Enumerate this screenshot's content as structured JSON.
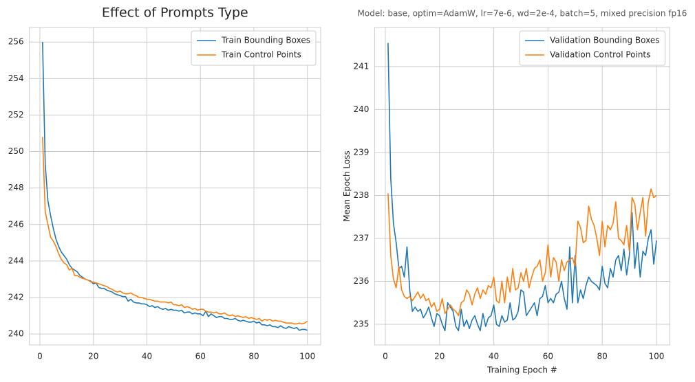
{
  "chart_data": [
    {
      "type": "line",
      "title": "Effect of Prompts Type",
      "x": [
        1,
        2,
        3,
        4,
        5,
        6,
        7,
        8,
        9,
        10,
        11,
        12,
        13,
        14,
        15,
        16,
        17,
        18,
        19,
        20,
        21,
        22,
        23,
        24,
        25,
        26,
        27,
        28,
        29,
        30,
        31,
        32,
        33,
        34,
        35,
        36,
        37,
        38,
        39,
        40,
        41,
        42,
        43,
        44,
        45,
        46,
        47,
        48,
        49,
        50,
        51,
        52,
        53,
        54,
        55,
        56,
        57,
        58,
        59,
        60,
        61,
        62,
        63,
        64,
        65,
        66,
        67,
        68,
        69,
        70,
        71,
        72,
        73,
        74,
        75,
        76,
        77,
        78,
        79,
        80,
        81,
        82,
        83,
        84,
        85,
        86,
        87,
        88,
        89,
        90,
        91,
        92,
        93,
        94,
        95,
        96,
        97,
        98,
        99,
        100
      ],
      "series": [
        {
          "name": "Train Bounding Boxes",
          "color": "#1f77b4",
          "values": [
            256.0,
            249.3,
            247.3,
            246.5,
            245.8,
            245.2,
            244.8,
            244.5,
            244.3,
            244.1,
            243.8,
            243.6,
            243.5,
            243.4,
            243.2,
            243.1,
            243.0,
            242.95,
            242.9,
            242.75,
            242.8,
            242.55,
            242.5,
            242.5,
            242.4,
            242.35,
            242.3,
            242.2,
            242.15,
            242.1,
            242.05,
            242.05,
            241.8,
            241.9,
            241.75,
            241.7,
            241.7,
            241.65,
            241.65,
            241.6,
            241.5,
            241.55,
            241.45,
            241.5,
            241.4,
            241.35,
            241.4,
            241.3,
            241.35,
            241.3,
            241.3,
            241.25,
            241.3,
            241.15,
            241.2,
            241.2,
            241.1,
            241.15,
            241.1,
            241.1,
            241.0,
            241.25,
            240.95,
            241.1,
            241.0,
            240.9,
            240.95,
            240.95,
            240.85,
            240.85,
            240.8,
            240.8,
            240.85,
            240.75,
            240.7,
            240.75,
            240.7,
            240.65,
            240.65,
            240.7,
            240.6,
            240.65,
            240.5,
            240.5,
            240.45,
            240.5,
            240.4,
            240.4,
            240.35,
            240.45,
            240.35,
            240.3,
            240.4,
            240.35,
            240.3,
            240.35,
            240.2,
            240.25,
            240.25,
            240.2
          ]
        },
        {
          "name": "Train Control Points",
          "color": "#ff7f0e",
          "values": [
            250.8,
            246.7,
            246.0,
            245.3,
            245.1,
            244.8,
            244.4,
            244.1,
            243.9,
            243.8,
            243.5,
            243.6,
            243.2,
            243.2,
            243.1,
            243.05,
            243.0,
            242.95,
            242.85,
            242.85,
            242.8,
            242.75,
            242.7,
            242.65,
            242.6,
            242.5,
            242.45,
            242.35,
            242.3,
            242.35,
            242.25,
            242.2,
            242.2,
            242.25,
            242.15,
            242.1,
            242.0,
            242.0,
            241.95,
            241.9,
            241.9,
            241.85,
            241.8,
            241.8,
            241.75,
            241.75,
            241.75,
            241.7,
            241.75,
            241.6,
            241.6,
            241.55,
            241.6,
            241.45,
            241.5,
            241.45,
            241.35,
            241.4,
            241.3,
            241.35,
            241.35,
            241.25,
            241.2,
            241.2,
            241.15,
            241.2,
            241.1,
            241.1,
            241.15,
            241.05,
            241.0,
            241.05,
            240.95,
            241.0,
            240.95,
            240.9,
            240.95,
            240.85,
            240.9,
            240.85,
            240.8,
            240.85,
            240.7,
            240.8,
            240.75,
            240.8,
            240.7,
            240.75,
            240.7,
            240.7,
            240.65,
            240.6,
            240.6,
            240.6,
            240.55,
            240.55,
            240.6,
            240.55,
            240.6,
            240.7
          ]
        }
      ],
      "xlim": [
        -3.95,
        104.95
      ],
      "xticks": [
        0,
        20,
        40,
        60,
        80,
        100
      ],
      "ylim": [
        239.4,
        256.8
      ],
      "yticks": [
        240,
        242,
        244,
        246,
        248,
        250,
        252,
        254,
        256
      ],
      "grid": true,
      "legend": "upper-right"
    },
    {
      "type": "line",
      "title": "Model: base, optim=AdamW, lr=7e-6, wd=2e-4, batch=5, mixed precision fp16",
      "x_label": "Training Epoch #",
      "y_label": "Mean Epoch Loss",
      "x": [
        1,
        2,
        3,
        4,
        5,
        6,
        7,
        8,
        9,
        10,
        11,
        12,
        13,
        14,
        15,
        16,
        17,
        18,
        19,
        20,
        21,
        22,
        23,
        24,
        25,
        26,
        27,
        28,
        29,
        30,
        31,
        32,
        33,
        34,
        35,
        36,
        37,
        38,
        39,
        40,
        41,
        42,
        43,
        44,
        45,
        46,
        47,
        48,
        49,
        50,
        51,
        52,
        53,
        54,
        55,
        56,
        57,
        58,
        59,
        60,
        61,
        62,
        63,
        64,
        65,
        66,
        67,
        68,
        69,
        70,
        71,
        72,
        73,
        74,
        75,
        76,
        77,
        78,
        79,
        80,
        81,
        82,
        83,
        84,
        85,
        86,
        87,
        88,
        89,
        90,
        91,
        92,
        93,
        94,
        95,
        96,
        97,
        98,
        99,
        100
      ],
      "series": [
        {
          "name": "Validation Bounding Boxes",
          "color": "#1f77b4",
          "values": [
            241.55,
            238.4,
            237.35,
            236.9,
            236.3,
            236.35,
            236.1,
            236.8,
            235.8,
            235.3,
            235.4,
            235.3,
            235.35,
            235.15,
            235.25,
            235.4,
            235.15,
            234.95,
            235.25,
            235.2,
            235.0,
            234.85,
            235.5,
            235.4,
            235.3,
            234.95,
            234.85,
            235.35,
            234.95,
            235.1,
            234.9,
            235.1,
            235.2,
            235.0,
            234.85,
            235.25,
            234.95,
            235.15,
            235.2,
            235.45,
            235.0,
            234.95,
            235.2,
            235.05,
            235.1,
            235.5,
            235.1,
            235.15,
            235.3,
            235.8,
            235.75,
            235.2,
            235.3,
            235.4,
            235.5,
            235.2,
            235.6,
            235.65,
            235.9,
            235.5,
            235.6,
            235.5,
            235.7,
            235.75,
            236.0,
            235.6,
            235.35,
            236.8,
            235.5,
            236.6,
            235.5,
            235.8,
            235.6,
            235.9,
            236.1,
            236.0,
            235.95,
            235.9,
            235.8,
            236.35,
            235.95,
            235.85,
            236.3,
            236.1,
            236.5,
            236.6,
            236.25,
            236.75,
            236.15,
            236.6,
            237.6,
            236.3,
            236.9,
            236.1,
            236.7,
            236.6,
            237.0,
            237.2,
            236.4,
            236.95
          ]
        },
        {
          "name": "Validation Control Points",
          "color": "#ff7f0e",
          "values": [
            238.05,
            236.6,
            236.05,
            235.85,
            236.35,
            235.8,
            235.65,
            235.6,
            235.65,
            235.55,
            235.65,
            235.75,
            235.6,
            235.7,
            235.55,
            235.6,
            235.4,
            235.5,
            235.3,
            235.35,
            235.6,
            235.25,
            235.35,
            235.45,
            235.35,
            235.3,
            235.2,
            235.5,
            235.55,
            235.8,
            235.7,
            235.45,
            235.7,
            235.85,
            235.6,
            235.8,
            235.7,
            235.9,
            235.85,
            236.1,
            235.55,
            235.5,
            236.0,
            235.5,
            236.1,
            235.75,
            236.3,
            235.8,
            235.85,
            236.2,
            236.0,
            236.3,
            235.85,
            236.1,
            236.3,
            236.35,
            236.5,
            236.0,
            236.2,
            236.85,
            236.1,
            236.55,
            236.45,
            236.0,
            236.5,
            236.25,
            236.45,
            236.5,
            236.55,
            236.35,
            237.4,
            237.25,
            236.9,
            236.95,
            237.75,
            237.45,
            237.3,
            237.0,
            236.6,
            237.4,
            236.8,
            237.3,
            237.2,
            237.35,
            237.85,
            237.0,
            236.95,
            236.85,
            237.3,
            236.7,
            237.95,
            237.8,
            237.2,
            237.6,
            237.95,
            237.05,
            237.85,
            238.15,
            237.95,
            238.0
          ]
        }
      ],
      "xlim": [
        -3.95,
        104.95
      ],
      "xticks": [
        0,
        20,
        40,
        60,
        80,
        100
      ],
      "ylim": [
        234.52,
        241.91
      ],
      "yticks": [
        235,
        236,
        237,
        238,
        239,
        240,
        241
      ],
      "grid": true,
      "legend": "upper-right"
    }
  ]
}
